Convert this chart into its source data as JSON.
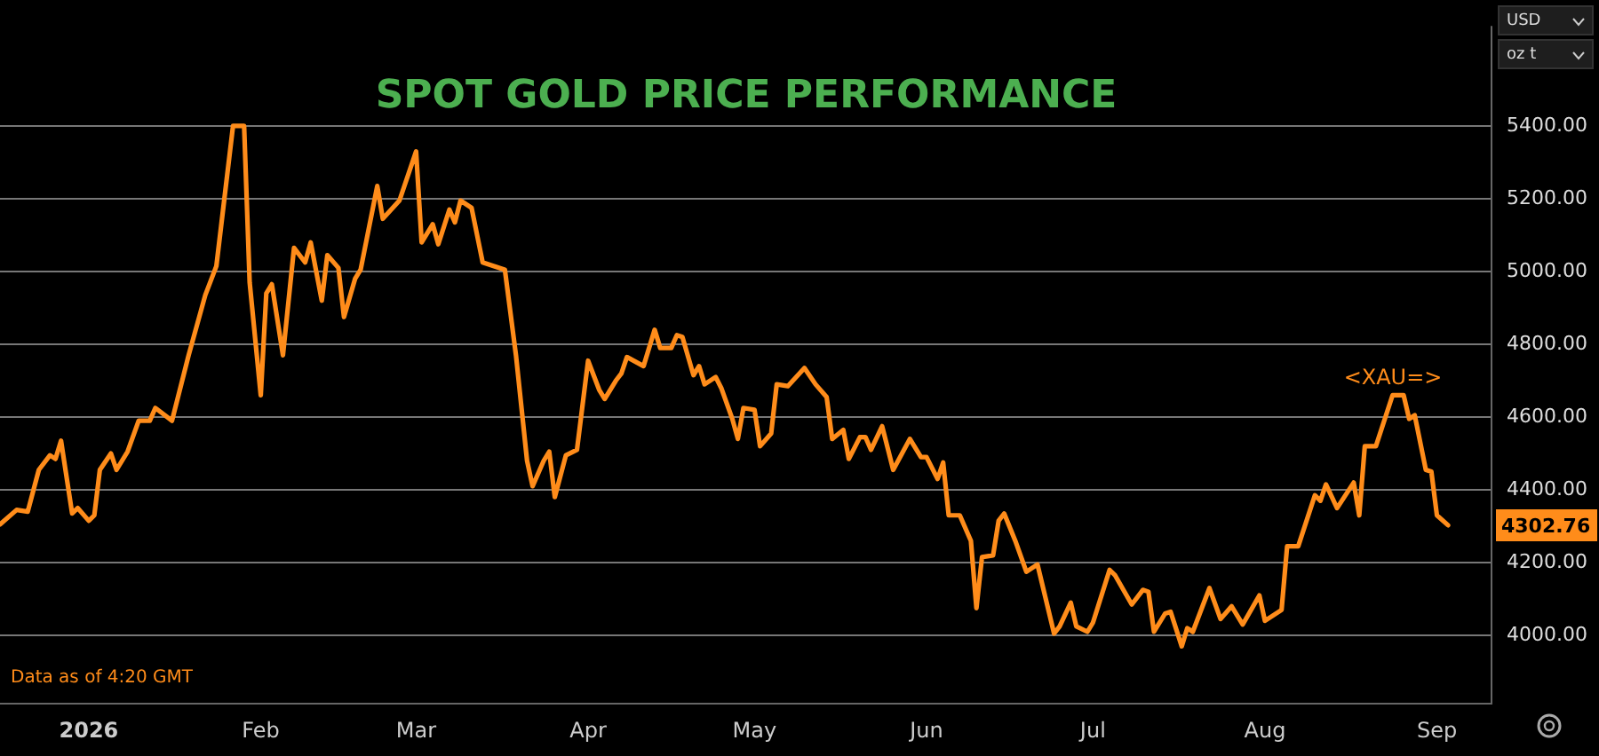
{
  "chart_data": {
    "type": "line",
    "title": "SPOT GOLD PRICE PERFORMANCE",
    "x": [
      "2025-12-16",
      "2025-12-19",
      "2025-12-21",
      "2025-12-23",
      "2025-12-25",
      "2025-12-26",
      "2025-12-27",
      "2025-12-29",
      "2025-12-30",
      "2026-01-01",
      "2026-01-02",
      "2026-01-03",
      "2026-01-05",
      "2026-01-06",
      "2026-01-08",
      "2026-01-10",
      "2026-01-12",
      "2026-01-13",
      "2026-01-16",
      "2026-01-19",
      "2026-01-22",
      "2026-01-24",
      "2026-01-27",
      "2026-01-29",
      "2026-01-30",
      "2026-02-01",
      "2026-02-02",
      "2026-02-03",
      "2026-02-05",
      "2026-02-07",
      "2026-02-09",
      "2026-02-10",
      "2026-02-12",
      "2026-02-13",
      "2026-02-15",
      "2026-02-16",
      "2026-02-18",
      "2026-02-19",
      "2026-02-22",
      "2026-02-23",
      "2026-02-26",
      "2026-03-01",
      "2026-03-02",
      "2026-03-04",
      "2026-03-05",
      "2026-03-07",
      "2026-03-08",
      "2026-03-09",
      "2026-03-11",
      "2026-03-13",
      "2026-03-17",
      "2026-03-19",
      "2026-03-21",
      "2026-03-22",
      "2026-03-24",
      "2026-03-25",
      "2026-03-26",
      "2026-03-28",
      "2026-03-30",
      "2026-04-01",
      "2026-04-03",
      "2026-04-04",
      "2026-04-06",
      "2026-04-07",
      "2026-04-08",
      "2026-04-11",
      "2026-04-13",
      "2026-04-14",
      "2026-04-16",
      "2026-04-17",
      "2026-04-18",
      "2026-04-20",
      "2026-04-21",
      "2026-04-22",
      "2026-04-24",
      "2026-04-25",
      "2026-04-27",
      "2026-04-28",
      "2026-04-29",
      "2026-05-01",
      "2026-05-02",
      "2026-05-04",
      "2026-05-05",
      "2026-05-07",
      "2026-05-10",
      "2026-05-12",
      "2026-05-14",
      "2026-05-15",
      "2026-05-17",
      "2026-05-18",
      "2026-05-20",
      "2026-05-21",
      "2026-05-22",
      "2026-05-24",
      "2026-05-26",
      "2026-05-29",
      "2026-05-31",
      "2026-06-01",
      "2026-06-03",
      "2026-06-04",
      "2026-06-05",
      "2026-06-07",
      "2026-06-09",
      "2026-06-10",
      "2026-06-11",
      "2026-06-13",
      "2026-06-14",
      "2026-06-15",
      "2026-06-17",
      "2026-06-19",
      "2026-06-21",
      "2026-06-24",
      "2026-06-25",
      "2026-06-27",
      "2026-06-28",
      "2026-06-30",
      "2026-07-01",
      "2026-07-04",
      "2026-07-05",
      "2026-07-08",
      "2026-07-10",
      "2026-07-11",
      "2026-07-12",
      "2026-07-14",
      "2026-07-15",
      "2026-07-17",
      "2026-07-18",
      "2026-07-19",
      "2026-07-22",
      "2026-07-24",
      "2026-07-26",
      "2026-07-28",
      "2026-07-31",
      "2026-08-01",
      "2026-08-04",
      "2026-08-05",
      "2026-08-07",
      "2026-08-10",
      "2026-08-11",
      "2026-08-12",
      "2026-08-14",
      "2026-08-17",
      "2026-08-18",
      "2026-08-19",
      "2026-08-21",
      "2026-08-24",
      "2026-08-26",
      "2026-08-27",
      "2026-08-28",
      "2026-08-30",
      "2026-08-31",
      "2026-09-01",
      "2026-09-03"
    ],
    "series": [
      {
        "color": "#ff8c1a",
        "values": [
          4305,
          4345,
          4340,
          4455,
          4495,
          4485,
          4535,
          4335,
          4350,
          4315,
          4330,
          4455,
          4500,
          4455,
          4505,
          4590,
          4590,
          4625,
          4590,
          4770,
          4935,
          5015,
          5400,
          5400,
          4970,
          4660,
          4940,
          4965,
          4770,
          5065,
          5025,
          5080,
          4920,
          5045,
          5010,
          4875,
          4980,
          5005,
          5235,
          5145,
          5195,
          5330,
          5080,
          5130,
          5075,
          5170,
          5135,
          5195,
          5175,
          5025,
          5005,
          4770,
          4480,
          4410,
          4480,
          4505,
          4380,
          4495,
          4510,
          4755,
          4675,
          4650,
          4700,
          4720,
          4765,
          4740,
          4840,
          4790,
          4790,
          4825,
          4820,
          4715,
          4740,
          4690,
          4710,
          4680,
          4595,
          4540,
          4625,
          4620,
          4520,
          4555,
          4690,
          4685,
          4735,
          4690,
          4655,
          4540,
          4565,
          4485,
          4545,
          4545,
          4510,
          4575,
          4455,
          4540,
          4490,
          4490,
          4430,
          4475,
          4330,
          4330,
          4260,
          4075,
          4215,
          4220,
          4315,
          4335,
          4260,
          4175,
          4195,
          4005,
          4025,
          4090,
          4025,
          4010,
          4035,
          4180,
          4165,
          4085,
          4125,
          4120,
          4010,
          4060,
          4065,
          3970,
          4020,
          4010,
          4130,
          4045,
          4080,
          4030,
          4110,
          4040,
          4070,
          4245,
          4245,
          4385,
          4370,
          4415,
          4350,
          4420,
          4330,
          4520,
          4520,
          4660,
          4660,
          4595,
          4605,
          4455,
          4450,
          4330,
          4302.76
        ]
      }
    ],
    "xlim": [
      "2025-12-16",
      "2026-09-11"
    ],
    "xticks": [
      {
        "value": "2026-01-01",
        "label": "2026"
      },
      {
        "value": "2026-02-01",
        "label": "Feb"
      },
      {
        "value": "2026-03-01",
        "label": "Mar"
      },
      {
        "value": "2026-04-01",
        "label": "Apr"
      },
      {
        "value": "2026-05-01",
        "label": "May"
      },
      {
        "value": "2026-06-01",
        "label": "Jun"
      },
      {
        "value": "2026-07-01",
        "label": "Jul"
      },
      {
        "value": "2026-08-01",
        "label": "Aug"
      },
      {
        "value": "2026-09-01",
        "label": "Sep"
      }
    ],
    "ylim": [
      3810,
      5675
    ],
    "yticks": [
      {
        "value": 4000,
        "label": "4000.00"
      },
      {
        "value": 4200,
        "label": "4200.00"
      },
      {
        "value": 4400,
        "label": "4400.00"
      },
      {
        "value": 4600,
        "label": "4600.00"
      },
      {
        "value": 4800,
        "label": "4800.00"
      },
      {
        "value": 5000,
        "label": "5000.00"
      },
      {
        "value": 5200,
        "label": "5200.00"
      },
      {
        "value": 5400,
        "label": "5400.00"
      }
    ],
    "grid": "y",
    "legend": false,
    "marker": "none",
    "line_style": "solid",
    "annotations": [
      {
        "text": "4302.76",
        "x": "2026-09-03",
        "y": 4302.76
      },
      "<XAU=>",
      "Data as of 4:20 GMT",
      "USD",
      "oz t"
    ]
  }
}
